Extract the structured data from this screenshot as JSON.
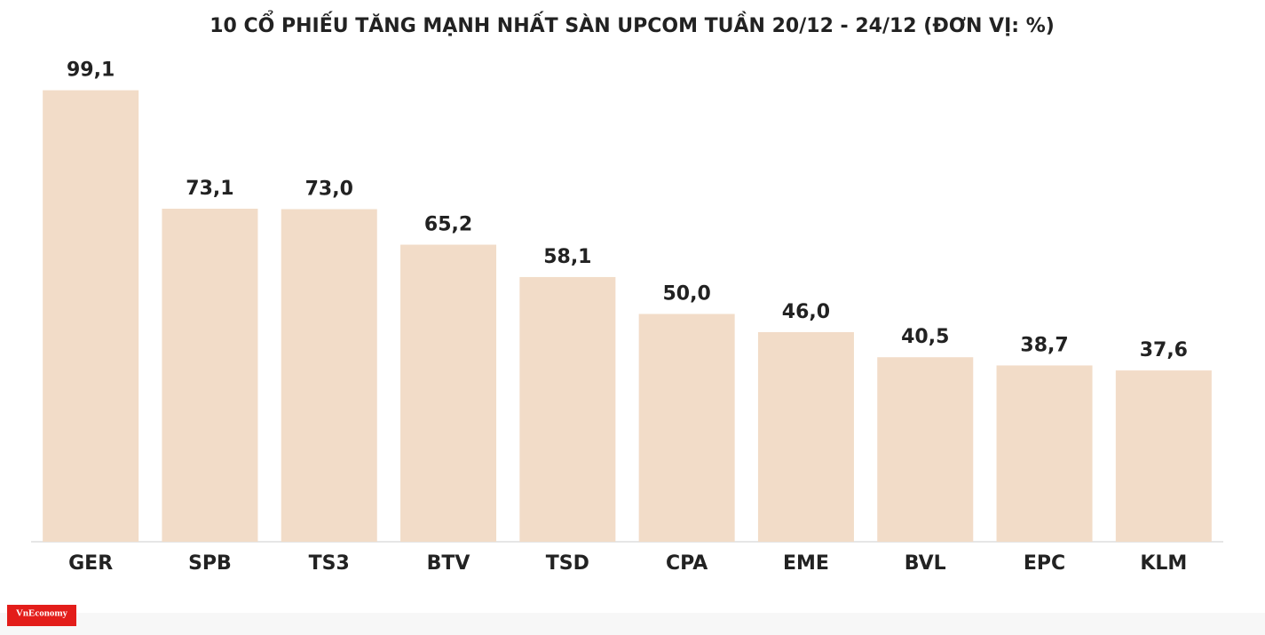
{
  "chart_data": {
    "type": "bar",
    "title": "10 CỔ PHIẾU TĂNG MẠNH NHẤT SÀN UPCOM TUẦN 20/12 - 24/12 (ĐƠN VỊ: %)",
    "categories": [
      "GER",
      "SPB",
      "TS3",
      "BTV",
      "TSD",
      "CPA",
      "EME",
      "BVL",
      "EPC",
      "KLM"
    ],
    "values": [
      99.1,
      73.1,
      73.0,
      65.2,
      58.1,
      50.0,
      46.0,
      40.5,
      38.7,
      37.6
    ],
    "value_labels": [
      "99,1",
      "73,1",
      "73,0",
      "65,2",
      "58,1",
      "50,0",
      "46,0",
      "40,5",
      "38,7",
      "37,6"
    ],
    "color": "#f2dcc8",
    "ylim": [
      0,
      100
    ],
    "grid": false
  },
  "logo": "VnEconomy"
}
